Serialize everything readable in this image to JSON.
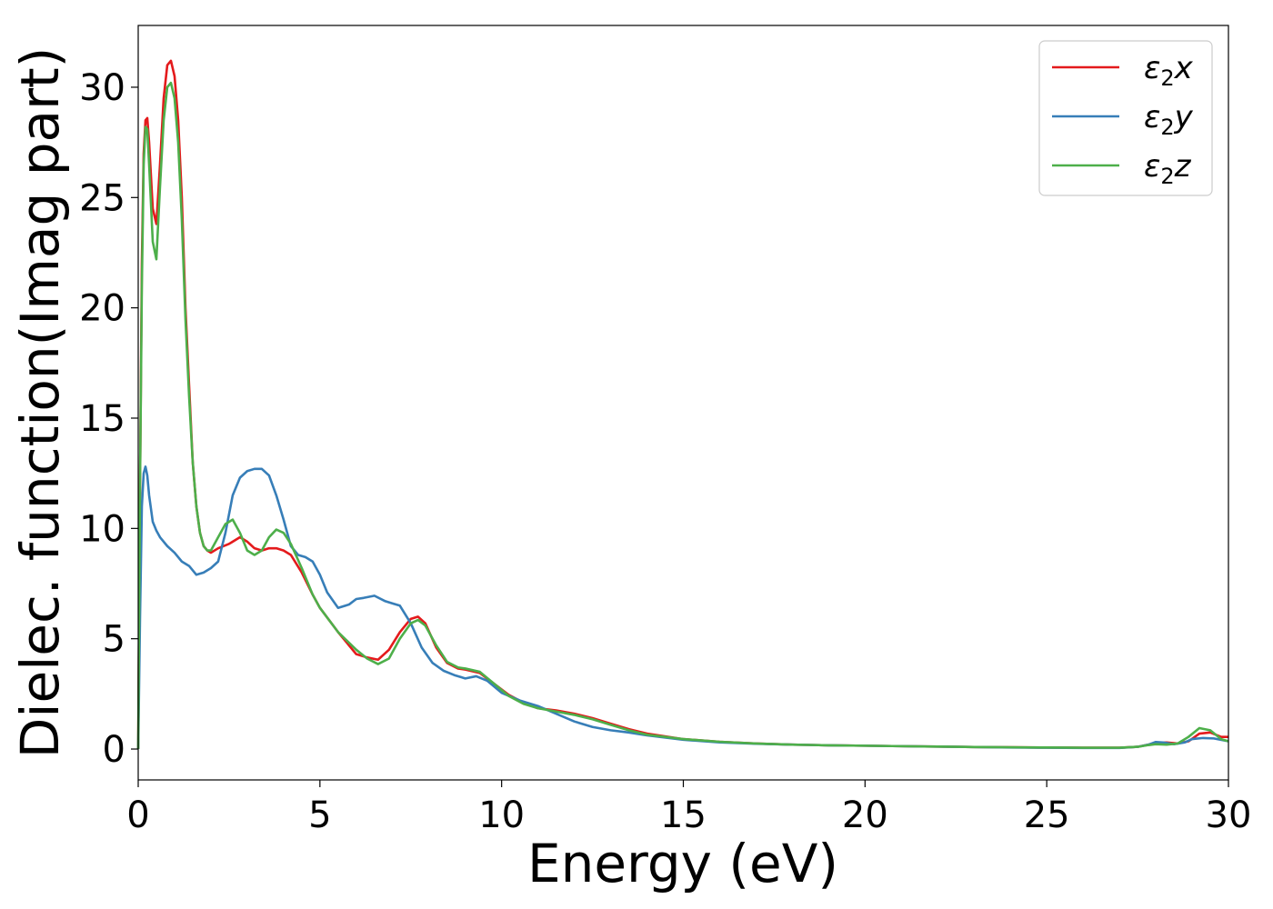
{
  "chart_data": {
    "type": "line",
    "title": "",
    "xlabel": "Energy (eV)",
    "ylabel": "Dielec. function(Imag part)",
    "xlim": [
      0,
      30
    ],
    "ylim": [
      -1.4,
      32.8
    ],
    "xticks": [
      0,
      5,
      10,
      15,
      20,
      25,
      30
    ],
    "yticks": [
      0,
      5,
      10,
      15,
      20,
      25,
      30
    ],
    "grid": false,
    "legend_position": "top-right",
    "series": [
      {
        "name": "ε2x",
        "label_main": "ε",
        "label_sub": "2",
        "label_tail": "x",
        "color": "#e41a1c",
        "x": [
          0,
          0.05,
          0.1,
          0.15,
          0.2,
          0.25,
          0.3,
          0.4,
          0.5,
          0.6,
          0.7,
          0.8,
          0.9,
          1.0,
          1.1,
          1.2,
          1.3,
          1.4,
          1.5,
          1.6,
          1.7,
          1.8,
          1.9,
          2.0,
          2.2,
          2.5,
          2.8,
          3.0,
          3.2,
          3.4,
          3.6,
          3.8,
          4.0,
          4.2,
          4.5,
          4.8,
          5.0,
          5.5,
          6.0,
          6.3,
          6.6,
          6.9,
          7.2,
          7.5,
          7.7,
          7.9,
          8.2,
          8.5,
          8.8,
          9.0,
          9.4,
          9.8,
          10.2,
          10.6,
          11.0,
          11.5,
          12.0,
          12.5,
          13.0,
          13.5,
          14.0,
          15.0,
          16.0,
          17.0,
          18.0,
          19.0,
          20.0,
          21.0,
          22.0,
          23.0,
          24.0,
          25.0,
          26.0,
          27.0,
          27.5,
          27.8,
          28.0,
          28.3,
          28.6,
          28.9,
          29.2,
          29.5,
          29.8,
          30.0
        ],
        "y": [
          0,
          12,
          22,
          27,
          28.5,
          28.6,
          27.5,
          24.5,
          23.8,
          26.5,
          29.5,
          31,
          31.2,
          30.5,
          28.5,
          25,
          20,
          16.5,
          13,
          11,
          9.8,
          9.2,
          9,
          8.9,
          9.1,
          9.3,
          9.6,
          9.4,
          9.1,
          9.0,
          9.1,
          9.1,
          9.0,
          8.8,
          8.0,
          7.0,
          6.4,
          5.3,
          4.3,
          4.15,
          4.05,
          4.5,
          5.3,
          5.9,
          6.0,
          5.7,
          4.6,
          3.9,
          3.65,
          3.6,
          3.45,
          2.95,
          2.45,
          2.1,
          1.85,
          1.75,
          1.6,
          1.4,
          1.15,
          0.9,
          0.7,
          0.45,
          0.33,
          0.25,
          0.2,
          0.17,
          0.15,
          0.13,
          0.11,
          0.09,
          0.08,
          0.07,
          0.06,
          0.06,
          0.1,
          0.2,
          0.28,
          0.3,
          0.25,
          0.35,
          0.7,
          0.75,
          0.55,
          0.55
        ]
      },
      {
        "name": "ε2y",
        "label_main": "ε",
        "label_sub": "2",
        "label_tail": "y",
        "color": "#377eb8",
        "x": [
          0,
          0.05,
          0.1,
          0.15,
          0.2,
          0.25,
          0.3,
          0.4,
          0.5,
          0.6,
          0.8,
          1.0,
          1.2,
          1.4,
          1.6,
          1.8,
          2.0,
          2.2,
          2.4,
          2.6,
          2.8,
          3.0,
          3.2,
          3.4,
          3.6,
          3.8,
          4.0,
          4.2,
          4.4,
          4.6,
          4.8,
          5.0,
          5.2,
          5.5,
          5.8,
          6.0,
          6.2,
          6.5,
          6.8,
          7.0,
          7.2,
          7.5,
          7.8,
          8.1,
          8.4,
          8.7,
          9.0,
          9.3,
          9.6,
          10.0,
          10.5,
          11.0,
          11.5,
          12.0,
          12.5,
          13.0,
          13.5,
          14.0,
          15.0,
          16.0,
          17.0,
          18.0,
          19.0,
          20.0,
          21.0,
          22.0,
          23.0,
          24.0,
          25.0,
          26.0,
          27.0,
          27.5,
          27.8,
          28.0,
          28.2,
          28.5,
          28.8,
          29.0,
          29.3,
          29.6,
          30.0
        ],
        "y": [
          0,
          6,
          11,
          12.5,
          12.8,
          12.4,
          11.5,
          10.3,
          9.9,
          9.6,
          9.2,
          8.9,
          8.5,
          8.3,
          7.9,
          8.0,
          8.2,
          8.5,
          9.8,
          11.5,
          12.3,
          12.6,
          12.7,
          12.7,
          12.4,
          11.5,
          10.4,
          9.2,
          8.8,
          8.7,
          8.5,
          7.9,
          7.1,
          6.4,
          6.55,
          6.8,
          6.85,
          6.95,
          6.7,
          6.6,
          6.5,
          5.7,
          4.6,
          3.9,
          3.55,
          3.35,
          3.2,
          3.3,
          3.1,
          2.55,
          2.2,
          1.95,
          1.6,
          1.25,
          1.0,
          0.85,
          0.75,
          0.62,
          0.42,
          0.3,
          0.24,
          0.2,
          0.17,
          0.15,
          0.13,
          0.11,
          0.09,
          0.07,
          0.06,
          0.05,
          0.05,
          0.1,
          0.2,
          0.32,
          0.3,
          0.22,
          0.3,
          0.45,
          0.5,
          0.48,
          0.35
        ]
      },
      {
        "name": "ε2z",
        "label_main": "ε",
        "label_sub": "2",
        "label_tail": "z",
        "color": "#4daf4a",
        "x": [
          0,
          0.05,
          0.1,
          0.15,
          0.2,
          0.25,
          0.3,
          0.4,
          0.5,
          0.6,
          0.7,
          0.8,
          0.9,
          1.0,
          1.1,
          1.2,
          1.3,
          1.4,
          1.5,
          1.6,
          1.7,
          1.8,
          1.9,
          2.0,
          2.2,
          2.4,
          2.6,
          2.8,
          3.0,
          3.2,
          3.4,
          3.6,
          3.8,
          4.0,
          4.2,
          4.5,
          4.8,
          5.0,
          5.5,
          6.0,
          6.3,
          6.6,
          6.9,
          7.2,
          7.5,
          7.7,
          7.9,
          8.2,
          8.5,
          8.8,
          9.0,
          9.4,
          9.8,
          10.2,
          10.6,
          11.0,
          11.5,
          12.0,
          12.5,
          13.0,
          13.5,
          14.0,
          15.0,
          16.0,
          17.0,
          18.0,
          19.0,
          20.0,
          21.0,
          22.0,
          23.0,
          24.0,
          25.0,
          26.0,
          27.0,
          27.5,
          27.8,
          28.0,
          28.3,
          28.6,
          28.9,
          29.2,
          29.5,
          29.8,
          30.0
        ],
        "y": [
          0,
          12,
          21,
          26.5,
          28.2,
          28.1,
          26.5,
          23,
          22.2,
          25.5,
          28.5,
          30,
          30.2,
          29.5,
          27.5,
          24,
          19.5,
          16,
          13,
          11,
          9.8,
          9.2,
          9.0,
          9.0,
          9.6,
          10.2,
          10.4,
          9.8,
          9.0,
          8.8,
          9.0,
          9.6,
          9.95,
          9.8,
          9.3,
          8.2,
          7.0,
          6.4,
          5.3,
          4.5,
          4.1,
          3.85,
          4.1,
          5.0,
          5.7,
          5.85,
          5.6,
          4.7,
          3.95,
          3.7,
          3.65,
          3.5,
          2.95,
          2.4,
          2.05,
          1.85,
          1.7,
          1.55,
          1.35,
          1.1,
          0.85,
          0.65,
          0.45,
          0.33,
          0.25,
          0.2,
          0.17,
          0.15,
          0.13,
          0.11,
          0.09,
          0.08,
          0.07,
          0.06,
          0.06,
          0.1,
          0.18,
          0.22,
          0.2,
          0.25,
          0.55,
          0.95,
          0.85,
          0.45,
          0.35
        ]
      }
    ]
  }
}
